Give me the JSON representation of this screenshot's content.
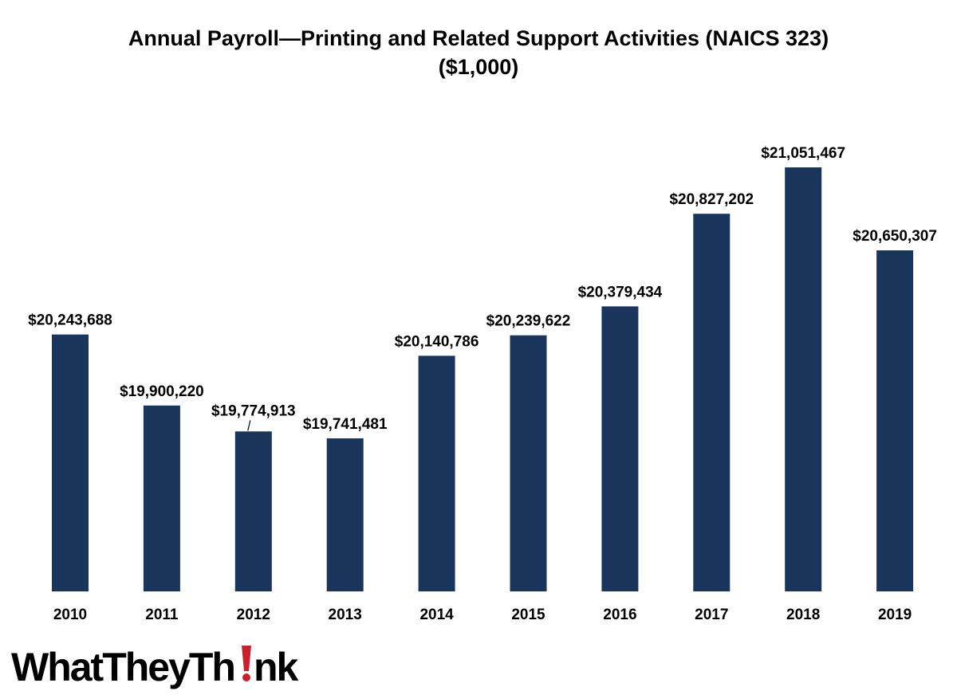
{
  "chart_data": {
    "type": "bar",
    "title_line1": "Annual Payroll—Printing and Related Support Activities (NAICS 323)",
    "title_line2": "($1,000)",
    "categories": [
      "2010",
      "2011",
      "2012",
      "2013",
      "2014",
      "2015",
      "2016",
      "2017",
      "2018",
      "2019"
    ],
    "values": [
      20243688,
      19900220,
      19774913,
      19741481,
      20140786,
      20239622,
      20379434,
      20827202,
      21051467,
      20650307
    ],
    "data_labels": [
      "$20,243,688",
      "$19,900,220",
      "$19,774,913",
      "$19,741,481",
      "$20,140,786",
      "$20,239,622",
      "$20,379,434",
      "$20,827,202",
      "$21,051,467",
      "$20,650,307"
    ],
    "xlabel": "",
    "ylabel": "",
    "bar_color": "#1a355b",
    "grid": false,
    "legend": "none"
  },
  "logo": {
    "text": "WhatTheyThink",
    "accent_color": "#c8202f"
  }
}
